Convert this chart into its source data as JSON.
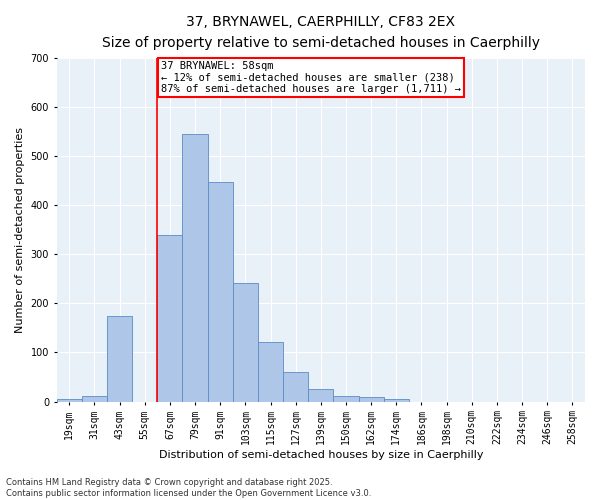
{
  "title1": "37, BRYNAWEL, CAERPHILLY, CF83 2EX",
  "title2": "Size of property relative to semi-detached houses in Caerphilly",
  "xlabel": "Distribution of semi-detached houses by size in Caerphilly",
  "ylabel": "Number of semi-detached properties",
  "bar_labels": [
    "19sqm",
    "31sqm",
    "43sqm",
    "55sqm",
    "67sqm",
    "79sqm",
    "91sqm",
    "103sqm",
    "115sqm",
    "127sqm",
    "139sqm",
    "150sqm",
    "162sqm",
    "174sqm",
    "186sqm",
    "198sqm",
    "210sqm",
    "222sqm",
    "234sqm",
    "246sqm",
    "258sqm"
  ],
  "bar_values": [
    5,
    12,
    175,
    0,
    340,
    545,
    447,
    242,
    122,
    60,
    25,
    12,
    10,
    6,
    0,
    0,
    0,
    0,
    0,
    0,
    0
  ],
  "bar_color": "#aec6e8",
  "bar_edge_color": "#5b8cc8",
  "background_color": "#e8f0f8",
  "ylim": [
    0,
    700
  ],
  "annotation_label": "37 BRYNAWEL: 58sqm",
  "annotation_pct_smaller": "12%",
  "annotation_count_smaller": "238",
  "annotation_pct_larger": "87%",
  "annotation_count_larger": "1,711",
  "footer": "Contains HM Land Registry data © Crown copyright and database right 2025.\nContains public sector information licensed under the Open Government Licence v3.0.",
  "grid_color": "#ffffff",
  "title1_fontsize": 10,
  "title2_fontsize": 9,
  "tick_fontsize": 7,
  "ylabel_fontsize": 8,
  "xlabel_fontsize": 8,
  "annotation_fontsize": 7.5,
  "footer_fontsize": 6
}
